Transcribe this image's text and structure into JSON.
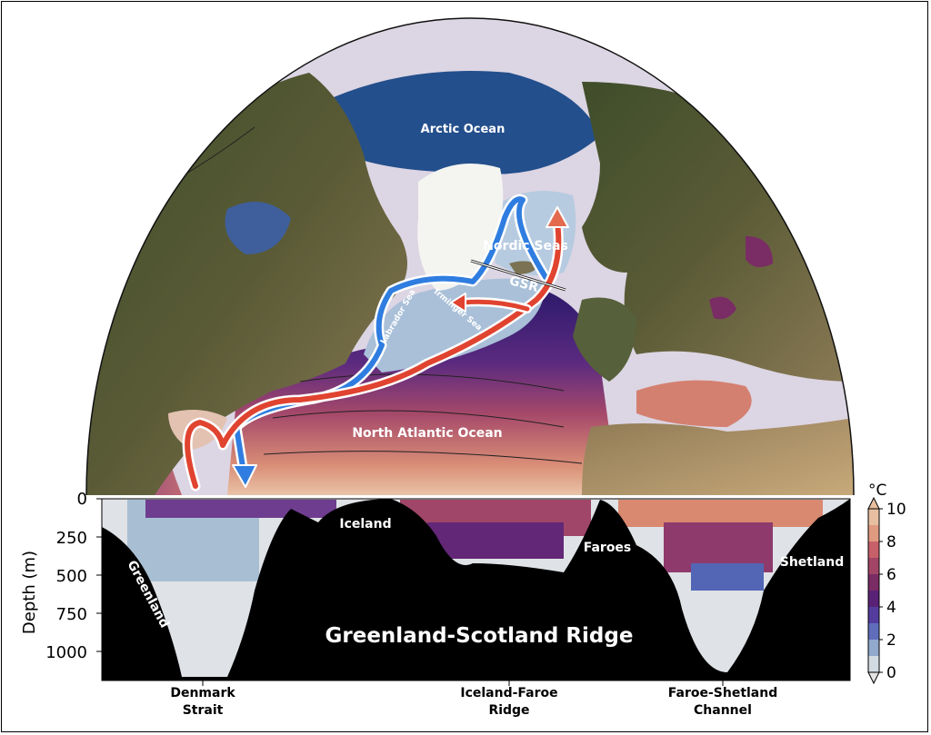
{
  "map": {
    "labels": {
      "arctic": "Arctic Ocean",
      "nordic": "Nordic Seas",
      "gsr": "GSR",
      "irminger": "Irminger Sea",
      "labrador": "Labrador Sea",
      "north_atlantic": "North Atlantic Ocean"
    }
  },
  "section": {
    "title": "Greenland-Scotland Ridge",
    "land_labels": {
      "greenland": "Greenland",
      "iceland": "Iceland",
      "faroes": "Faroes",
      "shetland": "Shetland"
    },
    "ylabel": "Depth (m)",
    "yticks": [
      "0",
      "250",
      "500",
      "750",
      "1000"
    ],
    "bottom_labels": {
      "denmark": [
        "Denmark",
        "Strait"
      ],
      "iceland_faroe": [
        "Iceland-Faroe",
        "Ridge"
      ],
      "faroe_shetland": [
        "Faroe-Shetland",
        "Channel"
      ]
    }
  },
  "colorbar": {
    "unit": "°C",
    "ticks": [
      "10",
      "8",
      "6",
      "4",
      "2",
      "0"
    ],
    "colors": [
      "#e7bfa0",
      "#e09a7f",
      "#c8606a",
      "#a24566",
      "#7a2c64",
      "#5a2277",
      "#533c9e",
      "#5f6dbb",
      "#91a9cc",
      "#d2dbe2"
    ]
  }
}
